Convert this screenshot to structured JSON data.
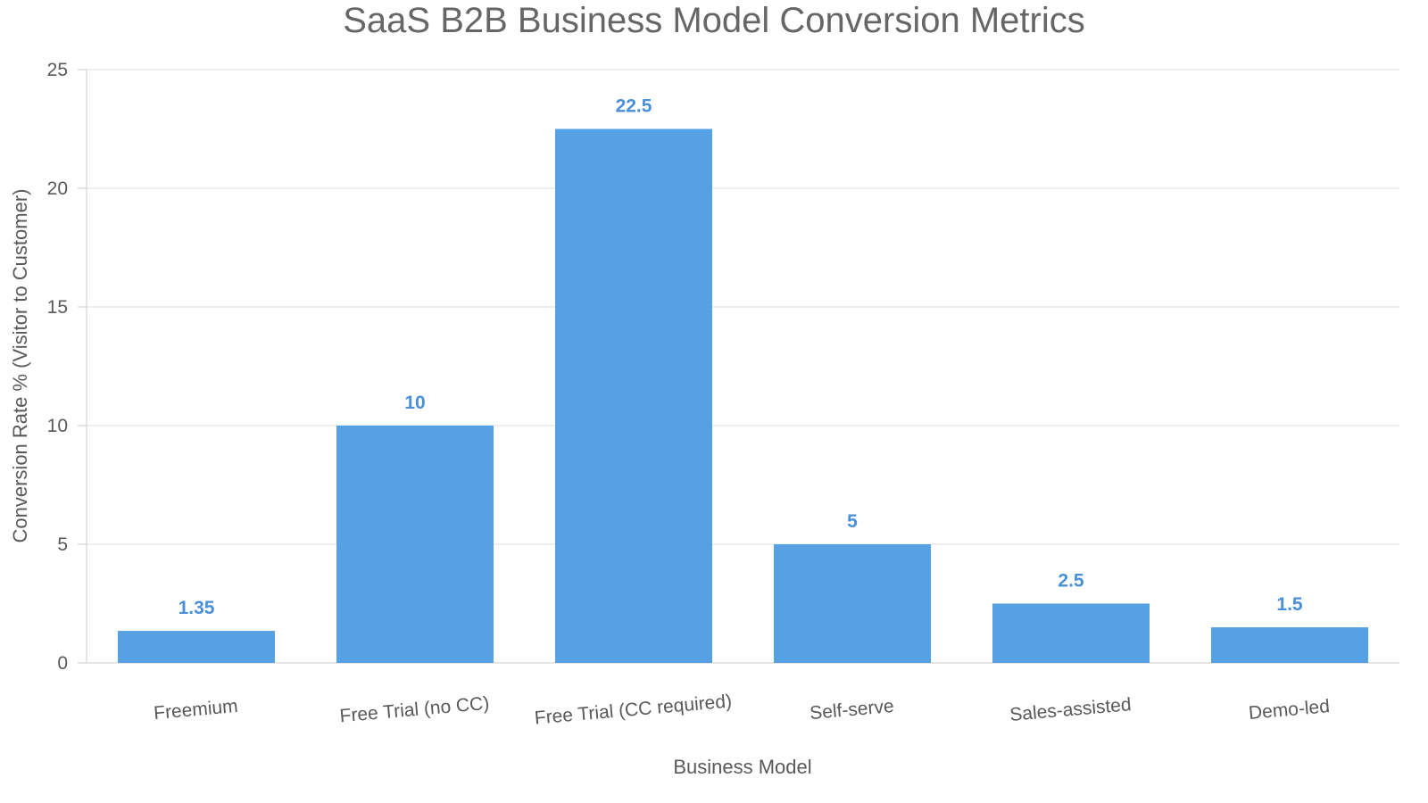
{
  "chart_data": {
    "type": "bar",
    "title": "SaaS B2B Business Model Conversion Metrics",
    "xlabel": "Business Model",
    "ylabel": "Conversion Rate % (Visitor to Customer)",
    "categories": [
      "Freemium",
      "Free Trial (no CC)",
      "Free Trial (CC required)",
      "Self-serve",
      "Sales-assisted",
      "Demo-led"
    ],
    "values": [
      1.35,
      10,
      22.5,
      5,
      2.5,
      1.5
    ],
    "data_labels": [
      "1.35",
      "10",
      "22.5",
      "5",
      "2.5",
      "1.5"
    ],
    "ylim": [
      0,
      25
    ],
    "yticks": [
      0,
      5,
      10,
      15,
      20,
      25
    ],
    "ytick_labels": [
      "0",
      "5",
      "10",
      "15",
      "20",
      "25"
    ],
    "grid": true,
    "legend": "none",
    "colors": {
      "bar": "#56a0e4",
      "data_label": "#4a90d9",
      "grid": "#dedede",
      "axis": "#cccccc",
      "text": "#595959",
      "title": "#666666"
    }
  }
}
